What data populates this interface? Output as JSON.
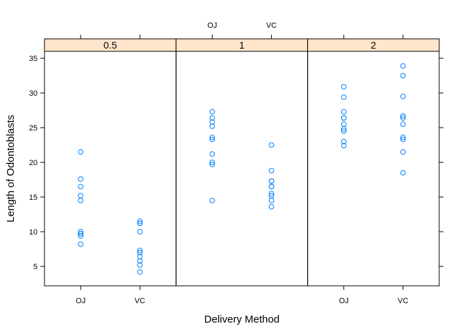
{
  "chart_data": {
    "type": "scatter",
    "xlabel": "Delivery Method",
    "ylabel": "Length of Odontoblasts",
    "categories": [
      "OJ",
      "VC"
    ],
    "ylim": [
      2.2,
      36.0
    ],
    "yticks": [
      5,
      10,
      15,
      20,
      25,
      30,
      35
    ],
    "point_color": "#0080ff",
    "strip_color": "#ffe5cc",
    "grid": false,
    "panels": [
      {
        "strip": "0.5",
        "bottom_tick_labels": true,
        "top_tick_labels": false,
        "series": [
          {
            "category": "OJ",
            "values": [
              15.2,
              21.5,
              17.6,
              9.7,
              14.5,
              10.0,
              8.2,
              9.4,
              16.5,
              9.7
            ]
          },
          {
            "category": "VC",
            "values": [
              4.2,
              11.5,
              7.3,
              5.8,
              6.4,
              10.0,
              11.2,
              11.2,
              5.2,
              7.0
            ]
          }
        ]
      },
      {
        "strip": "1",
        "bottom_tick_labels": false,
        "top_tick_labels": true,
        "series": [
          {
            "category": "OJ",
            "values": [
              19.7,
              23.3,
              23.6,
              26.4,
              20.0,
              25.2,
              25.8,
              21.2,
              14.5,
              27.3
            ]
          },
          {
            "category": "VC",
            "values": [
              16.5,
              16.5,
              15.2,
              17.3,
              22.5,
              17.3,
              13.6,
              14.5,
              18.8,
              15.5
            ]
          }
        ]
      },
      {
        "strip": "2",
        "bottom_tick_labels": true,
        "top_tick_labels": false,
        "series": [
          {
            "category": "OJ",
            "values": [
              25.5,
              26.4,
              22.4,
              24.5,
              24.8,
              30.9,
              26.4,
              27.3,
              29.4,
              23.0
            ]
          },
          {
            "category": "VC",
            "values": [
              23.6,
              18.5,
              33.9,
              25.5,
              26.4,
              32.5,
              26.7,
              21.5,
              23.3,
              29.5
            ]
          }
        ]
      }
    ]
  }
}
